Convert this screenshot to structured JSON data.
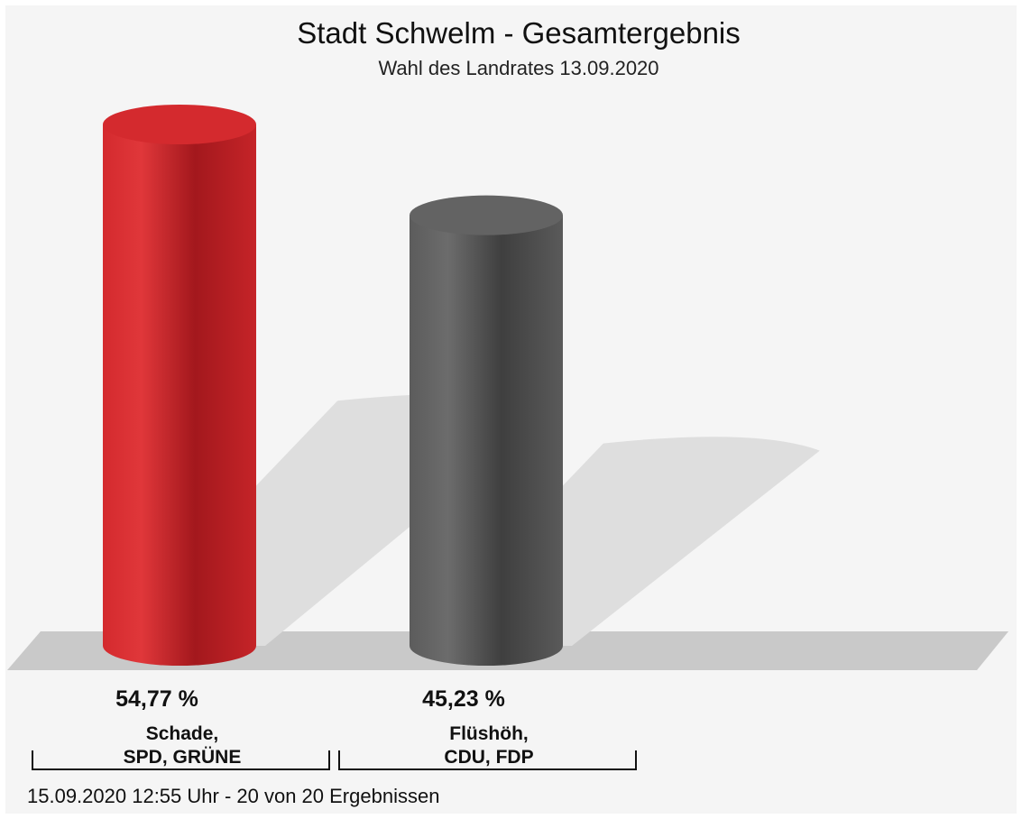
{
  "chart_data": {
    "type": "bar",
    "title": "Stadt Schwelm - Gesamtergebnis",
    "subtitle": "Wahl des Landrates 13.09.2020",
    "categories": [
      [
        "Schade,",
        "SPD, GRÜNE"
      ],
      [
        "Flüshöh,",
        "CDU, FDP"
      ]
    ],
    "values": [
      54.77,
      45.23
    ],
    "value_labels": [
      "54,77 %",
      "45,23 %"
    ],
    "colors": [
      "#d42a2e",
      "#636363"
    ],
    "ylim": [
      0,
      54.77
    ],
    "grid": false,
    "legend": "none"
  },
  "footer": "15.09.2020 12:55 Uhr - 20 von 20 Ergebnissen"
}
